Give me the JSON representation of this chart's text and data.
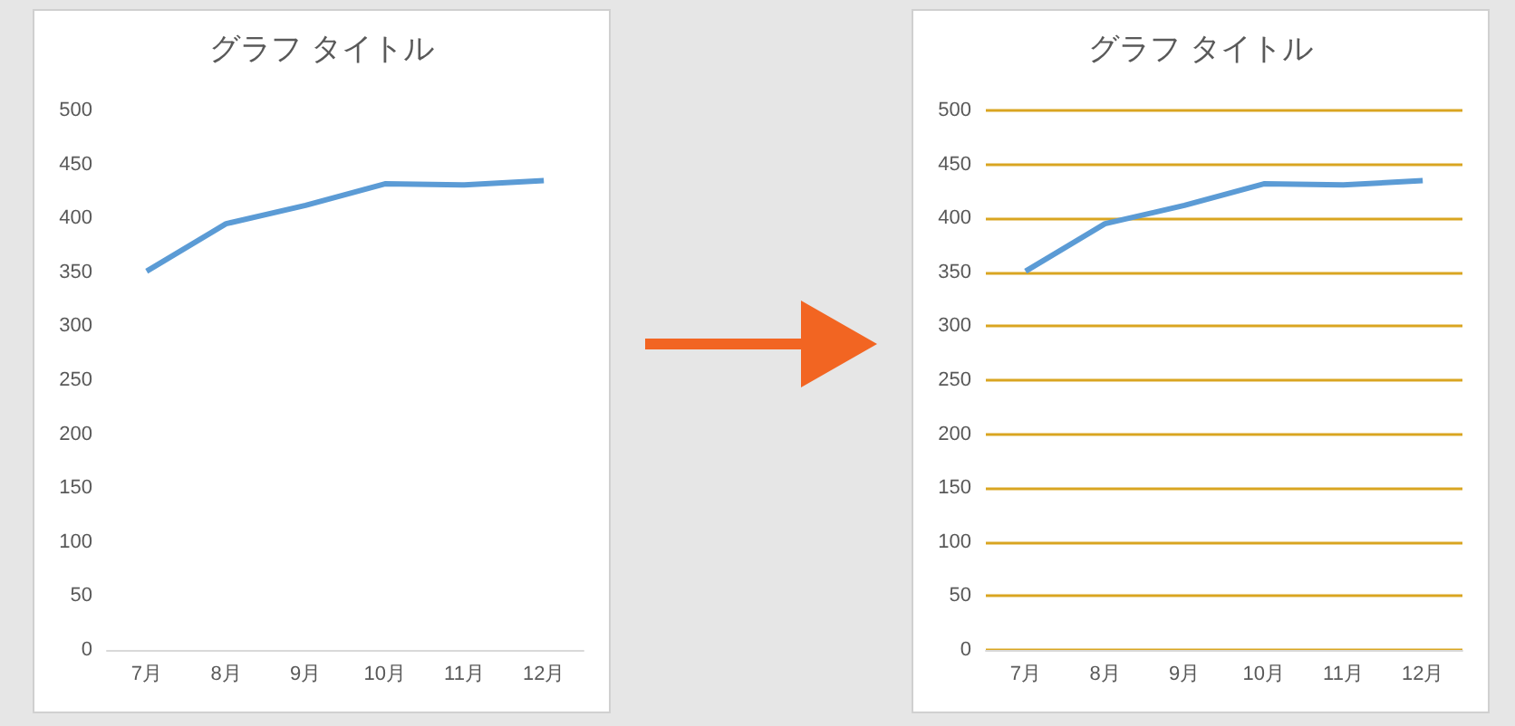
{
  "chart_data": [
    {
      "type": "line",
      "title": "グラフ タイトル",
      "categories": [
        "7月",
        "8月",
        "9月",
        "10月",
        "11月",
        "12月"
      ],
      "series": [
        {
          "color": "#5b9bd5",
          "values": [
            351,
            395,
            412,
            432,
            431,
            435
          ]
        }
      ],
      "ylim": [
        0,
        500
      ],
      "yticks": [
        0,
        50,
        100,
        150,
        200,
        250,
        300,
        350,
        400,
        450,
        500
      ],
      "grid": false,
      "marker": "none"
    },
    {
      "type": "line",
      "title": "グラフ タイトル",
      "categories": [
        "7月",
        "8月",
        "9月",
        "10月",
        "11月",
        "12月"
      ],
      "series": [
        {
          "color": "#5b9bd5",
          "values": [
            351,
            395,
            412,
            432,
            431,
            435
          ]
        }
      ],
      "ylim": [
        0,
        500
      ],
      "yticks": [
        0,
        50,
        100,
        150,
        200,
        250,
        300,
        350,
        400,
        450,
        500
      ],
      "grid": "y",
      "marker": "none"
    }
  ]
}
